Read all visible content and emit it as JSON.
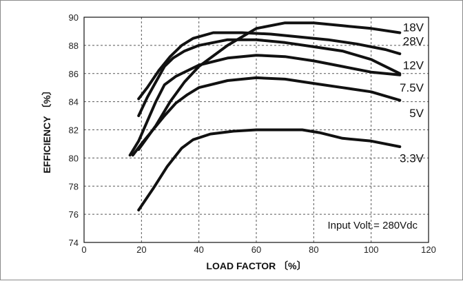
{
  "chart_data": {
    "type": "line",
    "xlabel": "LOAD FACTOR 〔%〕",
    "ylabel": "EFFICIENCY 〔%〕",
    "xlim": [
      0,
      120
    ],
    "ylim": [
      74,
      90
    ],
    "xticks": [
      0,
      20,
      40,
      60,
      80,
      100,
      120
    ],
    "yticks": [
      74,
      76,
      78,
      80,
      82,
      84,
      86,
      88,
      90
    ],
    "grid": true,
    "annotation": "Input Volt.= 280Vdc",
    "series": [
      {
        "name": "18V",
        "label_y": 89.3,
        "x": [
          19,
          25,
          30,
          35,
          40,
          50,
          60,
          70,
          80,
          90,
          100,
          110
        ],
        "y": [
          80.6,
          82.3,
          84.0,
          85.4,
          86.5,
          88.0,
          89.2,
          89.6,
          89.6,
          89.4,
          89.2,
          88.9
        ]
      },
      {
        "name": "28V",
        "label_y": 88.3,
        "x": [
          19,
          22,
          26,
          30,
          34,
          38,
          45,
          55,
          65,
          75,
          85,
          95,
          105,
          110
        ],
        "y": [
          84.2,
          85.0,
          86.2,
          87.2,
          88.0,
          88.5,
          88.9,
          88.9,
          88.8,
          88.6,
          88.4,
          88.1,
          87.7,
          87.4
        ]
      },
      {
        "name": "12V",
        "label_y": 86.6,
        "x": [
          19,
          22,
          25,
          28,
          31,
          35,
          40,
          50,
          60,
          70,
          80,
          90,
          100,
          110
        ],
        "y": [
          83.0,
          84.3,
          85.4,
          86.5,
          87.1,
          87.6,
          88.0,
          88.4,
          88.4,
          88.2,
          87.9,
          87.6,
          87.0,
          86.0
        ]
      },
      {
        "name": "7.5V",
        "label_y": 85.0,
        "x": [
          16,
          19,
          22,
          25,
          28,
          32,
          36,
          40,
          50,
          60,
          70,
          80,
          90,
          100,
          110
        ],
        "y": [
          80.2,
          81.2,
          82.6,
          84.0,
          85.2,
          85.8,
          86.2,
          86.6,
          87.1,
          87.3,
          87.2,
          86.9,
          86.5,
          86.1,
          85.9
        ]
      },
      {
        "name": "5V",
        "label_y": 83.2,
        "x": [
          17,
          20,
          24,
          28,
          32,
          36,
          40,
          50,
          60,
          70,
          80,
          90,
          100,
          110
        ],
        "y": [
          80.2,
          81.0,
          82.0,
          83.0,
          83.9,
          84.5,
          85.0,
          85.5,
          85.7,
          85.6,
          85.3,
          85.0,
          84.7,
          84.1
        ]
      },
      {
        "name": "3.3V",
        "label_y": 80.0,
        "x": [
          19,
          24,
          29,
          34,
          38,
          44,
          52,
          60,
          70,
          76,
          82,
          90,
          100,
          110
        ],
        "y": [
          76.3,
          77.8,
          79.4,
          80.7,
          81.3,
          81.7,
          81.9,
          82.0,
          82.0,
          82.0,
          81.8,
          81.4,
          81.2,
          80.8
        ]
      }
    ]
  }
}
